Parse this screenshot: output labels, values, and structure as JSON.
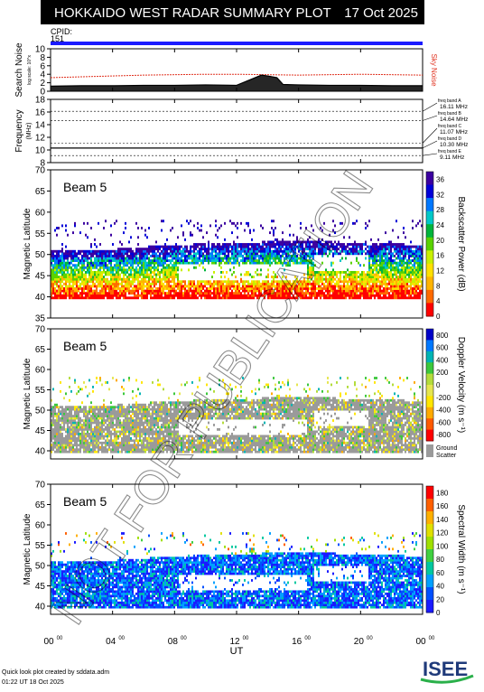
{
  "header": {
    "title": "HOKKAIDO WEST RADAR SUMMARY PLOT",
    "date": "17 Oct 2025"
  },
  "cpid": {
    "label": "CPID:",
    "value": "151"
  },
  "watermark": "NOT FOR PUBLICATION",
  "footer": {
    "credit": "Quick look plot created by sddata.adm",
    "timestamp": "01:22 UT 18 Oct 2025",
    "logo_text": "ISEE"
  },
  "chart_data": [
    {
      "id": "noise",
      "type": "line",
      "ylabel": "Search Noise",
      "ylabel_sub": "log scale: 10^x",
      "yticks": [
        0,
        2,
        4,
        6,
        8,
        10
      ],
      "ylim": [
        0,
        10
      ],
      "series": [
        {
          "name": "Sky Noise",
          "color": "#e0301e",
          "x": [
            0,
            2,
            4,
            6,
            8,
            10,
            12,
            14,
            16,
            18,
            20,
            22,
            24
          ],
          "values": [
            3.2,
            3.4,
            3.6,
            3.8,
            3.9,
            4.0,
            4.0,
            3.9,
            3.8,
            3.9,
            4.0,
            3.9,
            3.8
          ]
        },
        {
          "name": "Search Noise",
          "color": "#000000",
          "x": [
            0,
            2,
            4,
            6,
            8,
            10,
            12,
            13.6,
            14,
            14.6,
            15,
            16,
            18,
            20,
            22,
            24
          ],
          "values": [
            1.2,
            1.3,
            1.3,
            1.4,
            1.4,
            1.5,
            1.4,
            3.8,
            3.6,
            3.2,
            1.6,
            1.5,
            1.4,
            1.4,
            1.3,
            1.3
          ]
        }
      ]
    },
    {
      "id": "frequency",
      "type": "line",
      "ylabel": "Frequency",
      "yunit": "(MHz)",
      "yticks": [
        8,
        10,
        12,
        14,
        16,
        18
      ],
      "ylim": [
        8,
        18
      ],
      "bands": [
        {
          "label": "freq band A",
          "value_label": "16.11 MHz",
          "mhz": 16.11
        },
        {
          "label": "freq band B",
          "value_label": "14.64 MHz",
          "mhz": 14.64
        },
        {
          "label": "freq band C",
          "value_label": "11.07 MHz",
          "mhz": 11.07
        },
        {
          "label": "freq band D",
          "value_label": "10.30 MHz",
          "mhz": 10.3
        },
        {
          "label": "freq band E",
          "value_label": "9.11 MHz",
          "mhz": 9.11
        }
      ],
      "series": [
        {
          "name": "Operating frequency",
          "x": [
            0,
            24
          ],
          "values": [
            10.3,
            10.3
          ]
        }
      ]
    },
    {
      "id": "power",
      "type": "heatmap",
      "beam_label": "Beam  5",
      "ylabel": "Magnetic Latitude",
      "yticks": [
        35,
        40,
        45,
        50,
        55,
        60,
        65,
        70
      ],
      "ylim": [
        35,
        70
      ],
      "colorbar_label": "Backscatter Power (dB)",
      "colorbar_ticks": [
        0,
        4,
        8,
        12,
        16,
        20,
        24,
        28,
        32,
        36
      ],
      "colorbar_range": [
        0,
        38
      ],
      "colors": [
        "#ff0000",
        "#ff6a00",
        "#ffb400",
        "#ffe000",
        "#c8f000",
        "#5ad200",
        "#00b43c",
        "#00c8c8",
        "#0078ff",
        "#0000d8",
        "#3c00a0"
      ],
      "echo_band": [
        {
          "x": 0,
          "lower": 41.0,
          "upper": 50.5
        },
        {
          "x": 4,
          "lower": 41.0,
          "upper": 51.0
        },
        {
          "x": 8,
          "lower": 41.0,
          "upper": 52.0
        },
        {
          "x": 12,
          "lower": 41.0,
          "upper": 52.5
        },
        {
          "x": 16,
          "lower": 41.0,
          "upper": 53.0
        },
        {
          "x": 20,
          "lower": 41.0,
          "upper": 52.5
        },
        {
          "x": 24,
          "lower": 41.0,
          "upper": 52.0
        }
      ]
    },
    {
      "id": "velocity",
      "type": "heatmap",
      "beam_label": "Beam  5",
      "ylabel": "Magnetic Latitude",
      "yticks": [
        40,
        45,
        50,
        55,
        60,
        65,
        70
      ],
      "ylim": [
        38,
        70
      ],
      "colorbar_label": "Doppler Velocity (m s⁻¹)",
      "colorbar_ticks": [
        800,
        600,
        400,
        200,
        0,
        -200,
        -400,
        -600,
        -800
      ],
      "colorbar_range": [
        -900,
        900
      ],
      "ground_scatter_label": "Ground Scatter",
      "ground_scatter_color": "#9a9a9a",
      "colors": [
        "#ff0000",
        "#ff5a00",
        "#ffaa00",
        "#ffe600",
        "#e6e650",
        "#b4dc3c",
        "#3cc83c",
        "#00b4b4",
        "#0078ff",
        "#0000c8"
      ]
    },
    {
      "id": "width",
      "type": "heatmap",
      "beam_label": "Beam  5",
      "ylabel": "Magnetic Latitude",
      "yticks": [
        40,
        45,
        50,
        55,
        60,
        65,
        70
      ],
      "ylim": [
        38,
        70
      ],
      "colorbar_label": "Spectral Width (m s⁻¹)",
      "colorbar_ticks": [
        0,
        20,
        40,
        60,
        80,
        100,
        120,
        140,
        160,
        180
      ],
      "colorbar_range": [
        0,
        190
      ],
      "colors": [
        "#1a1aff",
        "#0050ff",
        "#00a0ff",
        "#00c8a0",
        "#40d040",
        "#a0e000",
        "#e0e000",
        "#ffb000",
        "#ff6000",
        "#ff0000"
      ]
    }
  ],
  "x_axis": {
    "label": "UT",
    "ticks": [
      "00",
      "04",
      "08",
      "12",
      "16",
      "20",
      "00"
    ],
    "tick_sup": "00",
    "hours": [
      0,
      4,
      8,
      12,
      16,
      20,
      24
    ]
  }
}
